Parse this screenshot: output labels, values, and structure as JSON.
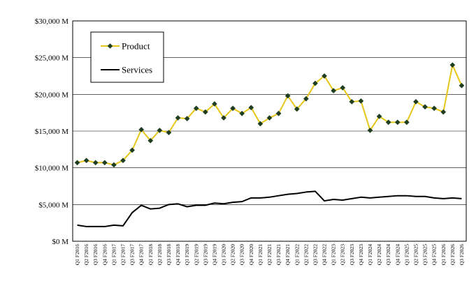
{
  "chart_data": {
    "type": "line",
    "title": "",
    "xlabel": "",
    "ylabel": "",
    "ylim": [
      0,
      30000
    ],
    "yticks": [
      0,
      5000,
      10000,
      15000,
      20000,
      25000,
      30000
    ],
    "ytick_labels": [
      "$0 M",
      "$5,000 M",
      "$10,000 M",
      "$15,000 M",
      "$20,000 M",
      "$25,000 M",
      "$30,000 M"
    ],
    "grid": true,
    "legend_position": "top-left",
    "categories": [
      "Q1 F2016",
      "Q2 F2016",
      "Q3 F2016",
      "Q4 F2016",
      "Q1 F2017",
      "Q2 F2017",
      "Q3 F2017",
      "Q4 F2017",
      "Q1 F2018",
      "Q2 F2018",
      "Q3 F2018",
      "Q4 F2018",
      "Q1 F2019",
      "Q2 F2019",
      "Q3 F2019",
      "Q4 F2019",
      "Q1 F2020",
      "Q2 F2020",
      "Q3 F2020",
      "Q4 F2020",
      "Q1 F2021",
      "Q2 F2021",
      "Q3 F2021",
      "Q4 F2021",
      "Q1 F2022",
      "Q2 F2022",
      "Q3 F2022",
      "Q4 F2022",
      "Q1 F2023",
      "Q2 F2023",
      "Q3 F2023",
      "Q4 F2023",
      "Q1 F2024",
      "Q2 F2024",
      "Q3 F2024",
      "Q4 F2024",
      "Q1 F2025",
      "Q2 F2025",
      "Q3 F2025",
      "Q4 F2025",
      "Q1 F2026",
      "Q2 F2026",
      "Q3 F2026"
    ],
    "series": [
      {
        "name": "Product",
        "color": "#e6c619",
        "marker": "diamond",
        "marker_color": "#1f3d1f",
        "values": [
          10700,
          11000,
          10700,
          10700,
          10400,
          11000,
          12400,
          15200,
          13700,
          15100,
          14800,
          16800,
          16700,
          18100,
          17600,
          18700,
          16800,
          18100,
          17400,
          18200,
          16000,
          16800,
          17400,
          19800,
          18000,
          19400,
          21500,
          22500,
          20500,
          20900,
          19000,
          19100,
          15100,
          17000,
          16200,
          16200,
          16200,
          19000,
          18300,
          18100,
          17600,
          24000,
          21200
        ]
      },
      {
        "name": "Services",
        "color": "#000000",
        "marker": "none",
        "values": [
          2200,
          2000,
          2000,
          2000,
          2200,
          2100,
          3900,
          4900,
          4400,
          4500,
          5000,
          5100,
          4700,
          4900,
          4900,
          5200,
          5100,
          5300,
          5400,
          5900,
          5900,
          6000,
          6200,
          6400,
          6500,
          6700,
          6800,
          5500,
          5700,
          5600,
          5800,
          6000,
          5900,
          6000,
          6100,
          6200,
          6200,
          6100,
          6100,
          5900,
          5800,
          5900,
          5800
        ]
      }
    ]
  }
}
